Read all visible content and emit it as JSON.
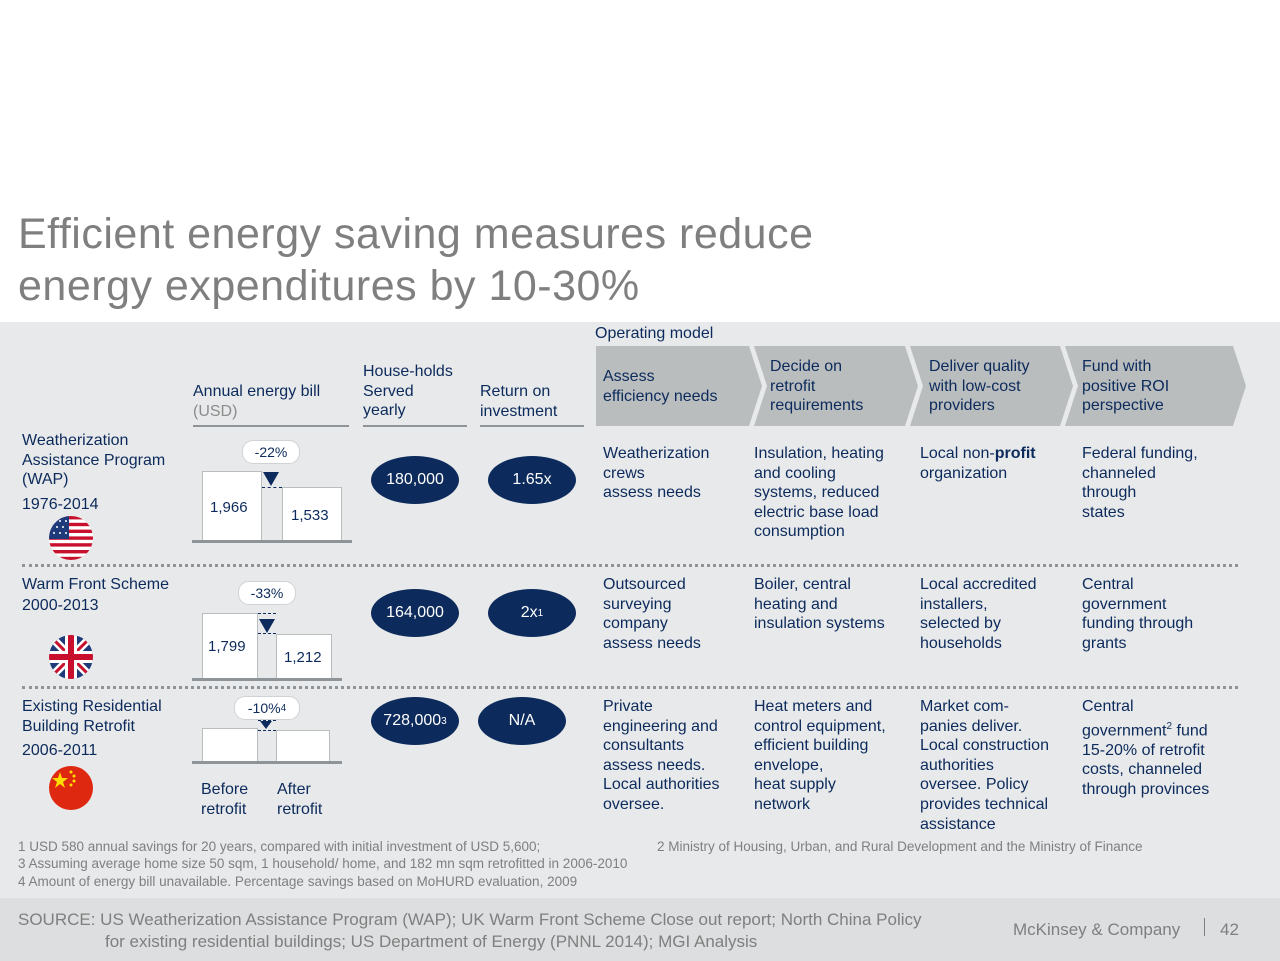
{
  "title_line1": "Efficient energy saving measures reduce",
  "title_line2": "energy expenditures by 10-30%",
  "operating_model_label": "Operating model",
  "columns": {
    "annual_bill": "Annual energy bill",
    "annual_bill_unit": "(USD)",
    "households_1": "House-holds",
    "households_2": "Served",
    "households_3": "yearly",
    "roi_1": "Return on",
    "roi_2": "investment"
  },
  "steps": [
    {
      "l1": "Assess",
      "l2": "efficiency needs"
    },
    {
      "l1": "Decide on",
      "l2": "retrofit",
      "l3": "requirements"
    },
    {
      "l1": "Deliver quality",
      "l2": "with low-cost",
      "l3": "providers"
    },
    {
      "l1": "Fund with",
      "l2": "positive ROI",
      "l3": "perspective"
    }
  ],
  "programs": [
    {
      "name_lines": [
        "Weatherization",
        "Assistance Program",
        "(WAP)"
      ],
      "years": "1976-2014",
      "country_flag": "usa-flag",
      "pct": "-22%",
      "before": "1,966",
      "after": "1,533",
      "before_value": 1966,
      "after_value": 1533,
      "households": "180,000",
      "roi": "1.65x",
      "assess": [
        "Weatherization",
        "crews",
        "assess needs"
      ],
      "decide": [
        "Insulation, heating",
        "and cooling",
        "systems, reduced",
        "electric base load",
        "consumption"
      ],
      "deliver_prefix": "Local non-",
      "deliver_bold": "profit",
      "deliver_rest": "organization",
      "fund": [
        "Federal funding,",
        "channeled",
        "through",
        "states"
      ]
    },
    {
      "name_lines": [
        "Warm Front Scheme"
      ],
      "years": "2000-2013",
      "country_flag": "uk-flag",
      "pct": "-33%",
      "before": "1,799",
      "after": "1,212",
      "before_value": 1799,
      "after_value": 1212,
      "households": "164,000",
      "roi": "2x",
      "roi_sup": "1",
      "assess": [
        "Outsourced",
        "surveying",
        "company",
        "assess needs"
      ],
      "decide": [
        "Boiler, central",
        "heating and",
        "insulation systems"
      ],
      "deliver": [
        "Local accredited",
        "installers,",
        "selected by",
        "households"
      ],
      "fund": [
        "Central",
        "government",
        "funding through",
        "grants"
      ]
    },
    {
      "name_lines": [
        "Existing Residential",
        "Building Retrofit"
      ],
      "years": "2006-2011",
      "country_flag": "china-flag",
      "pct": "-10%",
      "pct_sup": "4",
      "households": "728,000",
      "households_sup": "3",
      "roi": "N/A",
      "before_label_1": "Before",
      "before_label_2": "retrofit",
      "after_label_1": "After",
      "after_label_2": "retrofit",
      "assess": [
        "Private",
        "engineering and",
        "consultants",
        "assess needs.",
        "Local authorities",
        "oversee."
      ],
      "decide": [
        "Heat meters and",
        "control equipment,",
        "efficient building",
        "envelope,",
        "heat supply",
        "network"
      ],
      "deliver": [
        "Market com-",
        "panies deliver.",
        "Local construction",
        "authorities",
        "oversee. Policy",
        "provides technical",
        "assistance"
      ],
      "fund_1": "Central",
      "fund_2a": "government",
      "fund_2sup": "2",
      "fund_2b": " fund",
      "fund_3": "15-20% of retrofit",
      "fund_4": "costs, channeled",
      "fund_5": "through provinces"
    }
  ],
  "notes": {
    "n1": "1  USD 580 annual savings for 20 years, compared with initial investment of USD 5,600;",
    "n2": "2 Ministry of Housing, Urban, and Rural Development and the Ministry of Finance",
    "n3": "3 Assuming average home size 50 sqm, 1 household/ home, and 182 mn sqm retrofitted in 2006-2010",
    "n4": "4 Amount of energy bill unavailable. Percentage savings based on MoHURD evaluation, 2009"
  },
  "source_1": "SOURCE: US Weatherization Assistance Program (WAP); UK Warm Front Scheme Close out report; North China Policy",
  "source_2": "for existing residential buildings; US Department of Energy (PNNL 2014); MGI Analysis",
  "brand": "McKinsey & Company",
  "page_number": "42",
  "colors": {
    "navy": "#0c2a5b",
    "panel": "#e7e9ea",
    "chevron": "#b9bdbe",
    "title": "#7f7f7f"
  }
}
